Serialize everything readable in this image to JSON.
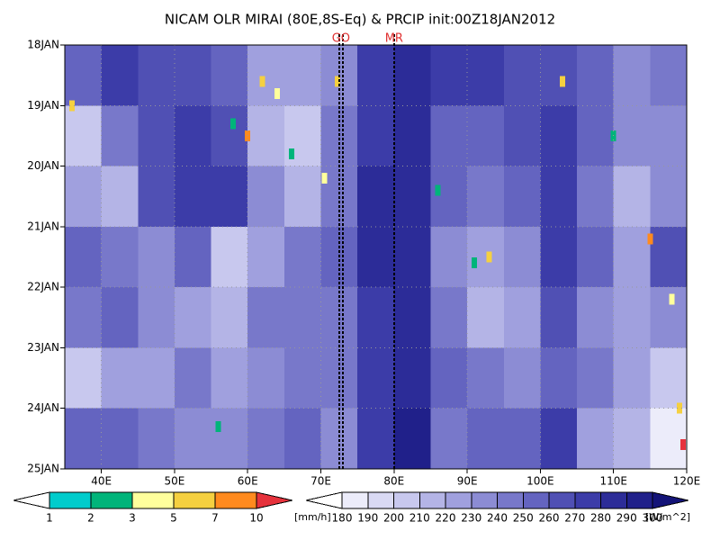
{
  "chart_data": {
    "type": "hovmoller",
    "title": "NICAM OLR MIRAI (80E,8S-Eq) & PRCIP init:00Z18JAN2012",
    "categories": [
      "18JAN",
      "19JAN",
      "20JAN",
      "21JAN",
      "22JAN",
      "23JAN",
      "24JAN",
      "25JAN"
    ],
    "xlim": [
      35,
      120
    ],
    "xticks": [
      {
        "value": 40,
        "label": "40E"
      },
      {
        "value": 50,
        "label": "50E"
      },
      {
        "value": 60,
        "label": "60E"
      },
      {
        "value": 70,
        "label": "70E"
      },
      {
        "value": 80,
        "label": "80E"
      },
      {
        "value": 90,
        "label": "90E"
      },
      {
        "value": 100,
        "label": "100E"
      },
      {
        "value": 110,
        "label": "110E"
      },
      {
        "value": 120,
        "label": "120E"
      }
    ],
    "grid": true,
    "olr": {
      "lon_bins": [
        35,
        40,
        45,
        50,
        55,
        60,
        65,
        70,
        75,
        80,
        85,
        90,
        95,
        100,
        105,
        110,
        115,
        120
      ],
      "values": [
        [
          250,
          270,
          260,
          265,
          250,
          225,
          220,
          230,
          270,
          285,
          270,
          270,
          265,
          265,
          255,
          230,
          240
        ],
        [
          200,
          240,
          265,
          270,
          260,
          210,
          200,
          240,
          275,
          285,
          255,
          250,
          265,
          270,
          250,
          230,
          230
        ],
        [
          220,
          215,
          260,
          270,
          275,
          230,
          215,
          245,
          280,
          285,
          250,
          245,
          250,
          270,
          240,
          215,
          230
        ],
        [
          250,
          245,
          230,
          250,
          200,
          220,
          240,
          255,
          280,
          285,
          230,
          225,
          230,
          270,
          250,
          225,
          260
        ],
        [
          240,
          255,
          230,
          225,
          215,
          245,
          245,
          240,
          275,
          285,
          245,
          215,
          220,
          260,
          230,
          225,
          235
        ],
        [
          205,
          225,
          220,
          240,
          225,
          235,
          240,
          245,
          270,
          285,
          250,
          240,
          230,
          255,
          240,
          225,
          200
        ],
        [
          255,
          250,
          240,
          230,
          230,
          245,
          250,
          235,
          275,
          290,
          245,
          250,
          255,
          270,
          220,
          210,
          185
        ]
      ],
      "levels": [
        180,
        190,
        200,
        210,
        220,
        230,
        240,
        250,
        260,
        270,
        280,
        290,
        300
      ],
      "colors": [
        "#ffffff",
        "#ececfa",
        "#dadaf4",
        "#c8c8ee",
        "#b4b4e6",
        "#a0a0de",
        "#8c8cd4",
        "#7878ca",
        "#6464c0",
        "#5050b4",
        "#3c3ca8",
        "#2c2c98",
        "#20208a",
        "#141478"
      ],
      "unit": "[W/m^2]"
    },
    "precip": {
      "x": [
        62,
        64,
        58,
        60,
        66,
        70.5,
        72.3,
        86,
        93,
        91,
        103,
        110,
        115,
        118,
        119,
        119.5,
        36,
        56
      ],
      "t": [
        0.6,
        0.8,
        1.3,
        1.5,
        1.8,
        2.2,
        0.6,
        2.4,
        3.5,
        3.6,
        0.6,
        1.5,
        3.2,
        4.2,
        6.0,
        6.6,
        1.0,
        6.3
      ],
      "values": [
        5,
        3,
        2,
        7,
        2,
        3,
        5,
        2,
        5,
        2,
        5,
        2,
        7,
        3,
        5,
        10,
        5,
        2
      ],
      "levels": [
        1,
        2,
        3,
        5,
        7,
        10
      ],
      "colors": [
        "#ffffff",
        "#00cccc",
        "#00b47a",
        "#ffff9c",
        "#f5d040",
        "#ff8a1e",
        "#e6323c"
      ],
      "unit": "[mm/h]"
    },
    "markers": [
      {
        "label": "GO",
        "x": [
          72.5,
          73
        ]
      },
      {
        "label": "MR",
        "x": [
          80
        ]
      }
    ]
  }
}
